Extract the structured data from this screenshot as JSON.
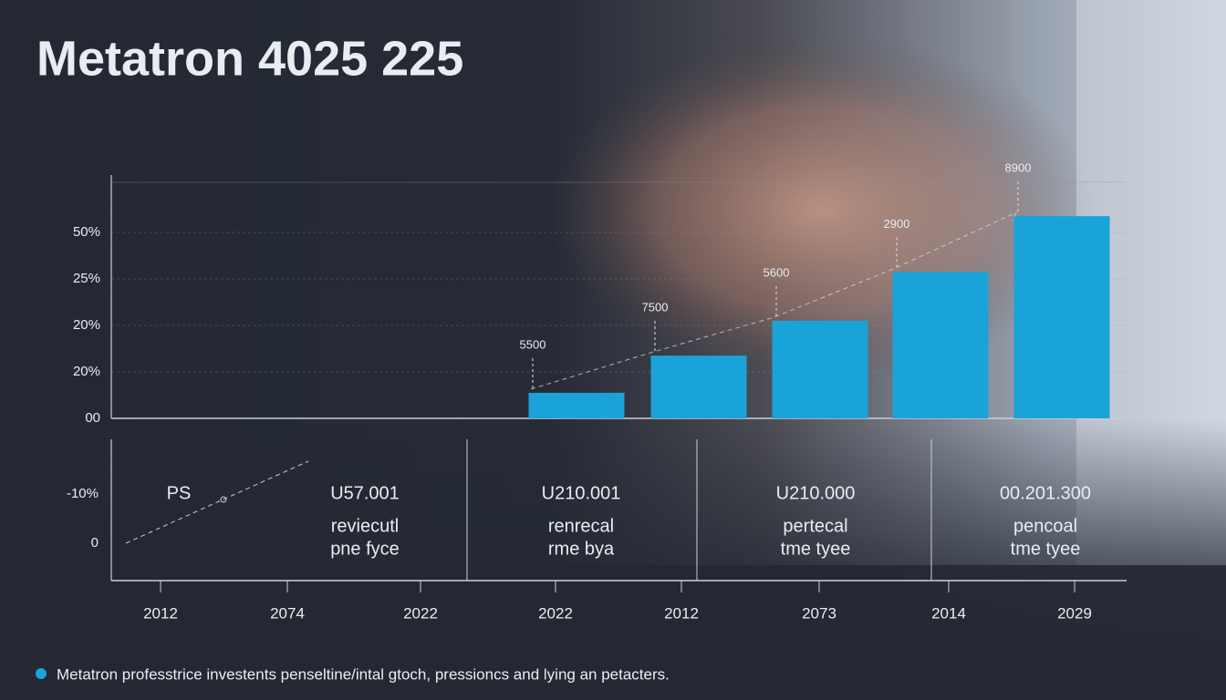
{
  "chart_data": {
    "type": "bar",
    "title": "Metatron 4025 225",
    "ytick_labels": [
      "00",
      "20%",
      "20%",
      "25%",
      "50%"
    ],
    "ylim": [
      0,
      5.3
    ],
    "color": "#1aa3d9",
    "categories": [
      null,
      null,
      null,
      null,
      null
    ],
    "values": [
      0.55,
      1.35,
      2.1,
      3.15,
      4.35
    ],
    "annotations": [
      "5500",
      "7500",
      "5600",
      "2900",
      "8900"
    ]
  },
  "lower_panel": {
    "y_labels": [
      "-10%",
      "0"
    ],
    "legend_label": "PS",
    "cells": [
      {
        "head": "U57.001",
        "lines": [
          "reviecutl",
          "pne fyce"
        ]
      },
      {
        "head": "U210.001",
        "lines": [
          "renrecal",
          "rme bya"
        ]
      },
      {
        "head": "U210.000",
        "lines": [
          "pertecal",
          "tme tyee"
        ]
      },
      {
        "head": "00.201.300",
        "lines": [
          "pencoal",
          "tme tyee"
        ]
      }
    ],
    "x_labels": [
      "2012",
      "2074",
      "2022",
      "2022",
      "2012",
      "2073",
      "2014",
      "2029"
    ]
  },
  "footnote": "Metatron professtrice investents penseltine/intal gtoch, pressioncs and lying an petacters."
}
